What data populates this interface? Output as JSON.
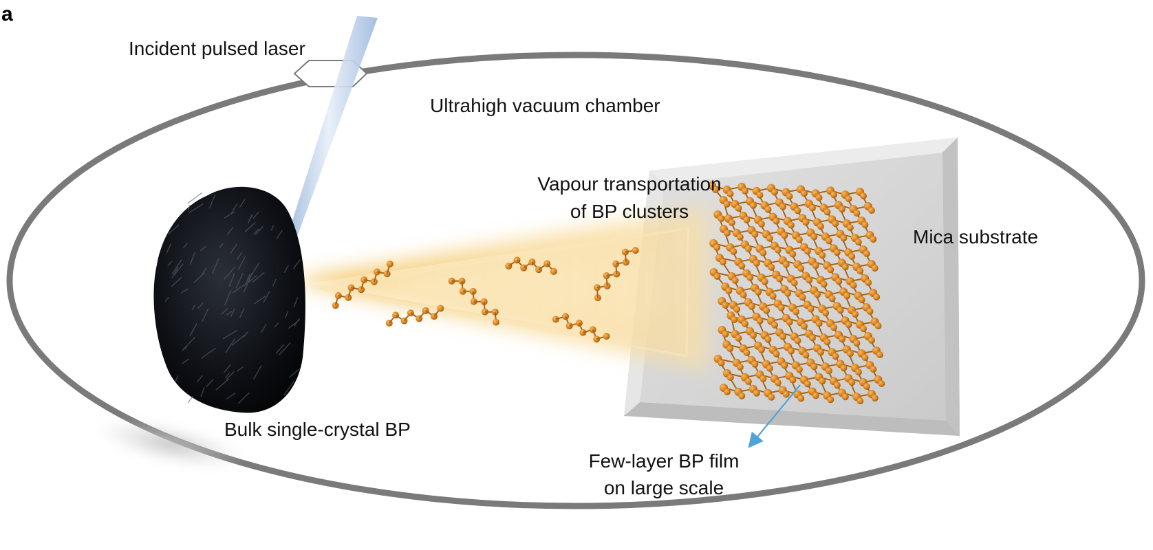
{
  "panel_label": "a",
  "labels": {
    "laser": "Incident pulsed laser",
    "chamber": "Ultrahigh vacuum chamber",
    "vapour_line1": "Vapour transportation",
    "vapour_line2": "of BP clusters",
    "substrate": "Mica substrate",
    "bulk": "Bulk single-crystal BP",
    "film_line1": "Few-layer BP film",
    "film_line2": "on large scale"
  },
  "colors": {
    "chamber_wall": "#7a7a7a",
    "laser_beam": "#b9cde6",
    "vapour_glow": "#f3c978",
    "phosphorus_atom": "#d9831d",
    "mica_substrate": "#d8d8d8",
    "bulk_crystal": "#0d0f14",
    "pointer_arrow": "#4ea3d8"
  }
}
